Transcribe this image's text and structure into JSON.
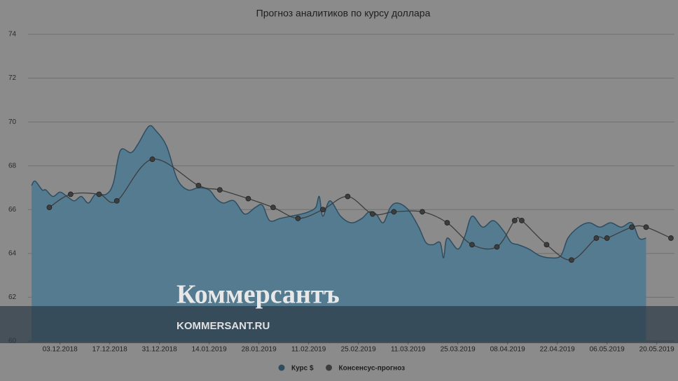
{
  "chart_data": {
    "type": "area-line",
    "title": "Прогноз аналитиков по курсу доллара",
    "watermark": {
      "brand": "Коммерсантъ",
      "site": "KOMMERSANT.RU"
    },
    "xlim": [
      "24.11.2018",
      "25.05.2019"
    ],
    "xticks": [
      "03.12.2018",
      "17.12.2018",
      "31.12.2018",
      "14.01.2019",
      "28.01.2019",
      "11.02.2019",
      "25.02.2019",
      "11.03.2019",
      "25.03.2019",
      "08.04.2019",
      "22.04.2019",
      "06.05.2019",
      "20.05.2019"
    ],
    "ylim": [
      60,
      74
    ],
    "yticks": [
      60,
      62,
      64,
      66,
      68,
      70,
      72,
      74
    ],
    "grid": true,
    "legend": "bottom",
    "series": [
      {
        "name": "Курс $",
        "color": "#557b91",
        "line_color": "#2e4d60",
        "style": "area",
        "x": [
          "25.11.2018",
          "26.11.2018",
          "28.11.2018",
          "29.11.2018",
          "01.12.2018",
          "03.12.2018",
          "05.12.2018",
          "07.12.2018",
          "09.12.2018",
          "11.12.2018",
          "13.12.2018",
          "16.12.2018",
          "18.12.2018",
          "20.12.2018",
          "23.12.2018",
          "25.12.2018",
          "28.12.2018",
          "30.12.2018",
          "02.01.2019",
          "05.01.2019",
          "08.01.2019",
          "11.01.2019",
          "14.01.2019",
          "16.01.2019",
          "18.01.2019",
          "21.01.2019",
          "24.01.2019",
          "27.01.2019",
          "29.01.2019",
          "31.01.2019",
          "03.02.2019",
          "06.02.2019",
          "09.02.2019",
          "11.02.2019",
          "13.02.2019",
          "14.02.2019",
          "15.02.2019",
          "17.02.2019",
          "20.02.2019",
          "23.02.2019",
          "26.02.2019",
          "28.02.2019",
          "02.03.2019",
          "04.03.2019",
          "06.03.2019",
          "08.03.2019",
          "11.03.2019",
          "14.03.2019",
          "16.03.2019",
          "18.03.2019",
          "20.03.2019",
          "21.03.2019",
          "22.03.2019",
          "25.03.2019",
          "27.03.2019",
          "29.03.2019",
          "01.04.2019",
          "04.04.2019",
          "07.04.2019",
          "09.04.2019",
          "11.04.2019",
          "14.04.2019",
          "17.04.2019",
          "20.04.2019",
          "23.04.2019",
          "25.04.2019",
          "28.04.2019",
          "01.05.2019",
          "04.05.2019",
          "07.05.2019",
          "10.05.2019",
          "13.05.2019",
          "15.05.2019",
          "17.05.2019"
        ],
        "values": [
          67.1,
          67.3,
          66.9,
          66.9,
          66.6,
          66.8,
          66.6,
          66.4,
          66.6,
          66.3,
          66.7,
          66.7,
          67.2,
          68.7,
          68.6,
          69.0,
          69.8,
          69.6,
          68.9,
          67.4,
          66.9,
          67.0,
          66.9,
          66.5,
          66.3,
          66.4,
          65.8,
          66.1,
          66.2,
          65.5,
          65.6,
          65.7,
          65.8,
          65.9,
          66.1,
          66.6,
          65.7,
          66.4,
          65.7,
          65.4,
          65.6,
          65.9,
          65.8,
          65.4,
          66.1,
          66.3,
          66.0,
          65.2,
          64.5,
          64.4,
          64.5,
          63.8,
          64.7,
          64.2,
          64.8,
          65.7,
          65.2,
          65.5,
          65.0,
          64.5,
          64.4,
          64.2,
          63.9,
          63.8,
          63.9,
          64.7,
          65.2,
          65.4,
          65.2,
          65.4,
          65.2,
          65.4,
          64.7,
          64.7
        ]
      },
      {
        "name": "Консенсус-прогноз",
        "color": "#3d3d3d",
        "style": "line",
        "x": [
          "30.11.2018",
          "06.12.2018",
          "14.12.2018",
          "19.12.2018",
          "29.12.2018",
          "11.01.2019",
          "17.01.2019",
          "25.01.2019",
          "01.02.2019",
          "08.02.2019",
          "15.02.2019",
          "22.02.2019",
          "01.03.2019",
          "07.03.2019",
          "15.03.2019",
          "22.03.2019",
          "29.03.2019",
          "05.04.2019",
          "10.04.2019",
          "12.04.2019",
          "19.04.2019",
          "26.04.2019",
          "03.05.2019",
          "06.05.2019",
          "13.05.2019",
          "17.05.2019",
          "24.05.2019"
        ],
        "values": [
          66.1,
          66.7,
          66.7,
          66.4,
          68.3,
          67.1,
          66.9,
          66.5,
          66.1,
          65.6,
          66.0,
          66.6,
          65.8,
          65.9,
          65.9,
          65.4,
          64.4,
          64.3,
          65.5,
          65.5,
          64.4,
          63.7,
          64.7,
          64.7,
          65.2,
          65.2,
          64.7
        ]
      }
    ]
  }
}
